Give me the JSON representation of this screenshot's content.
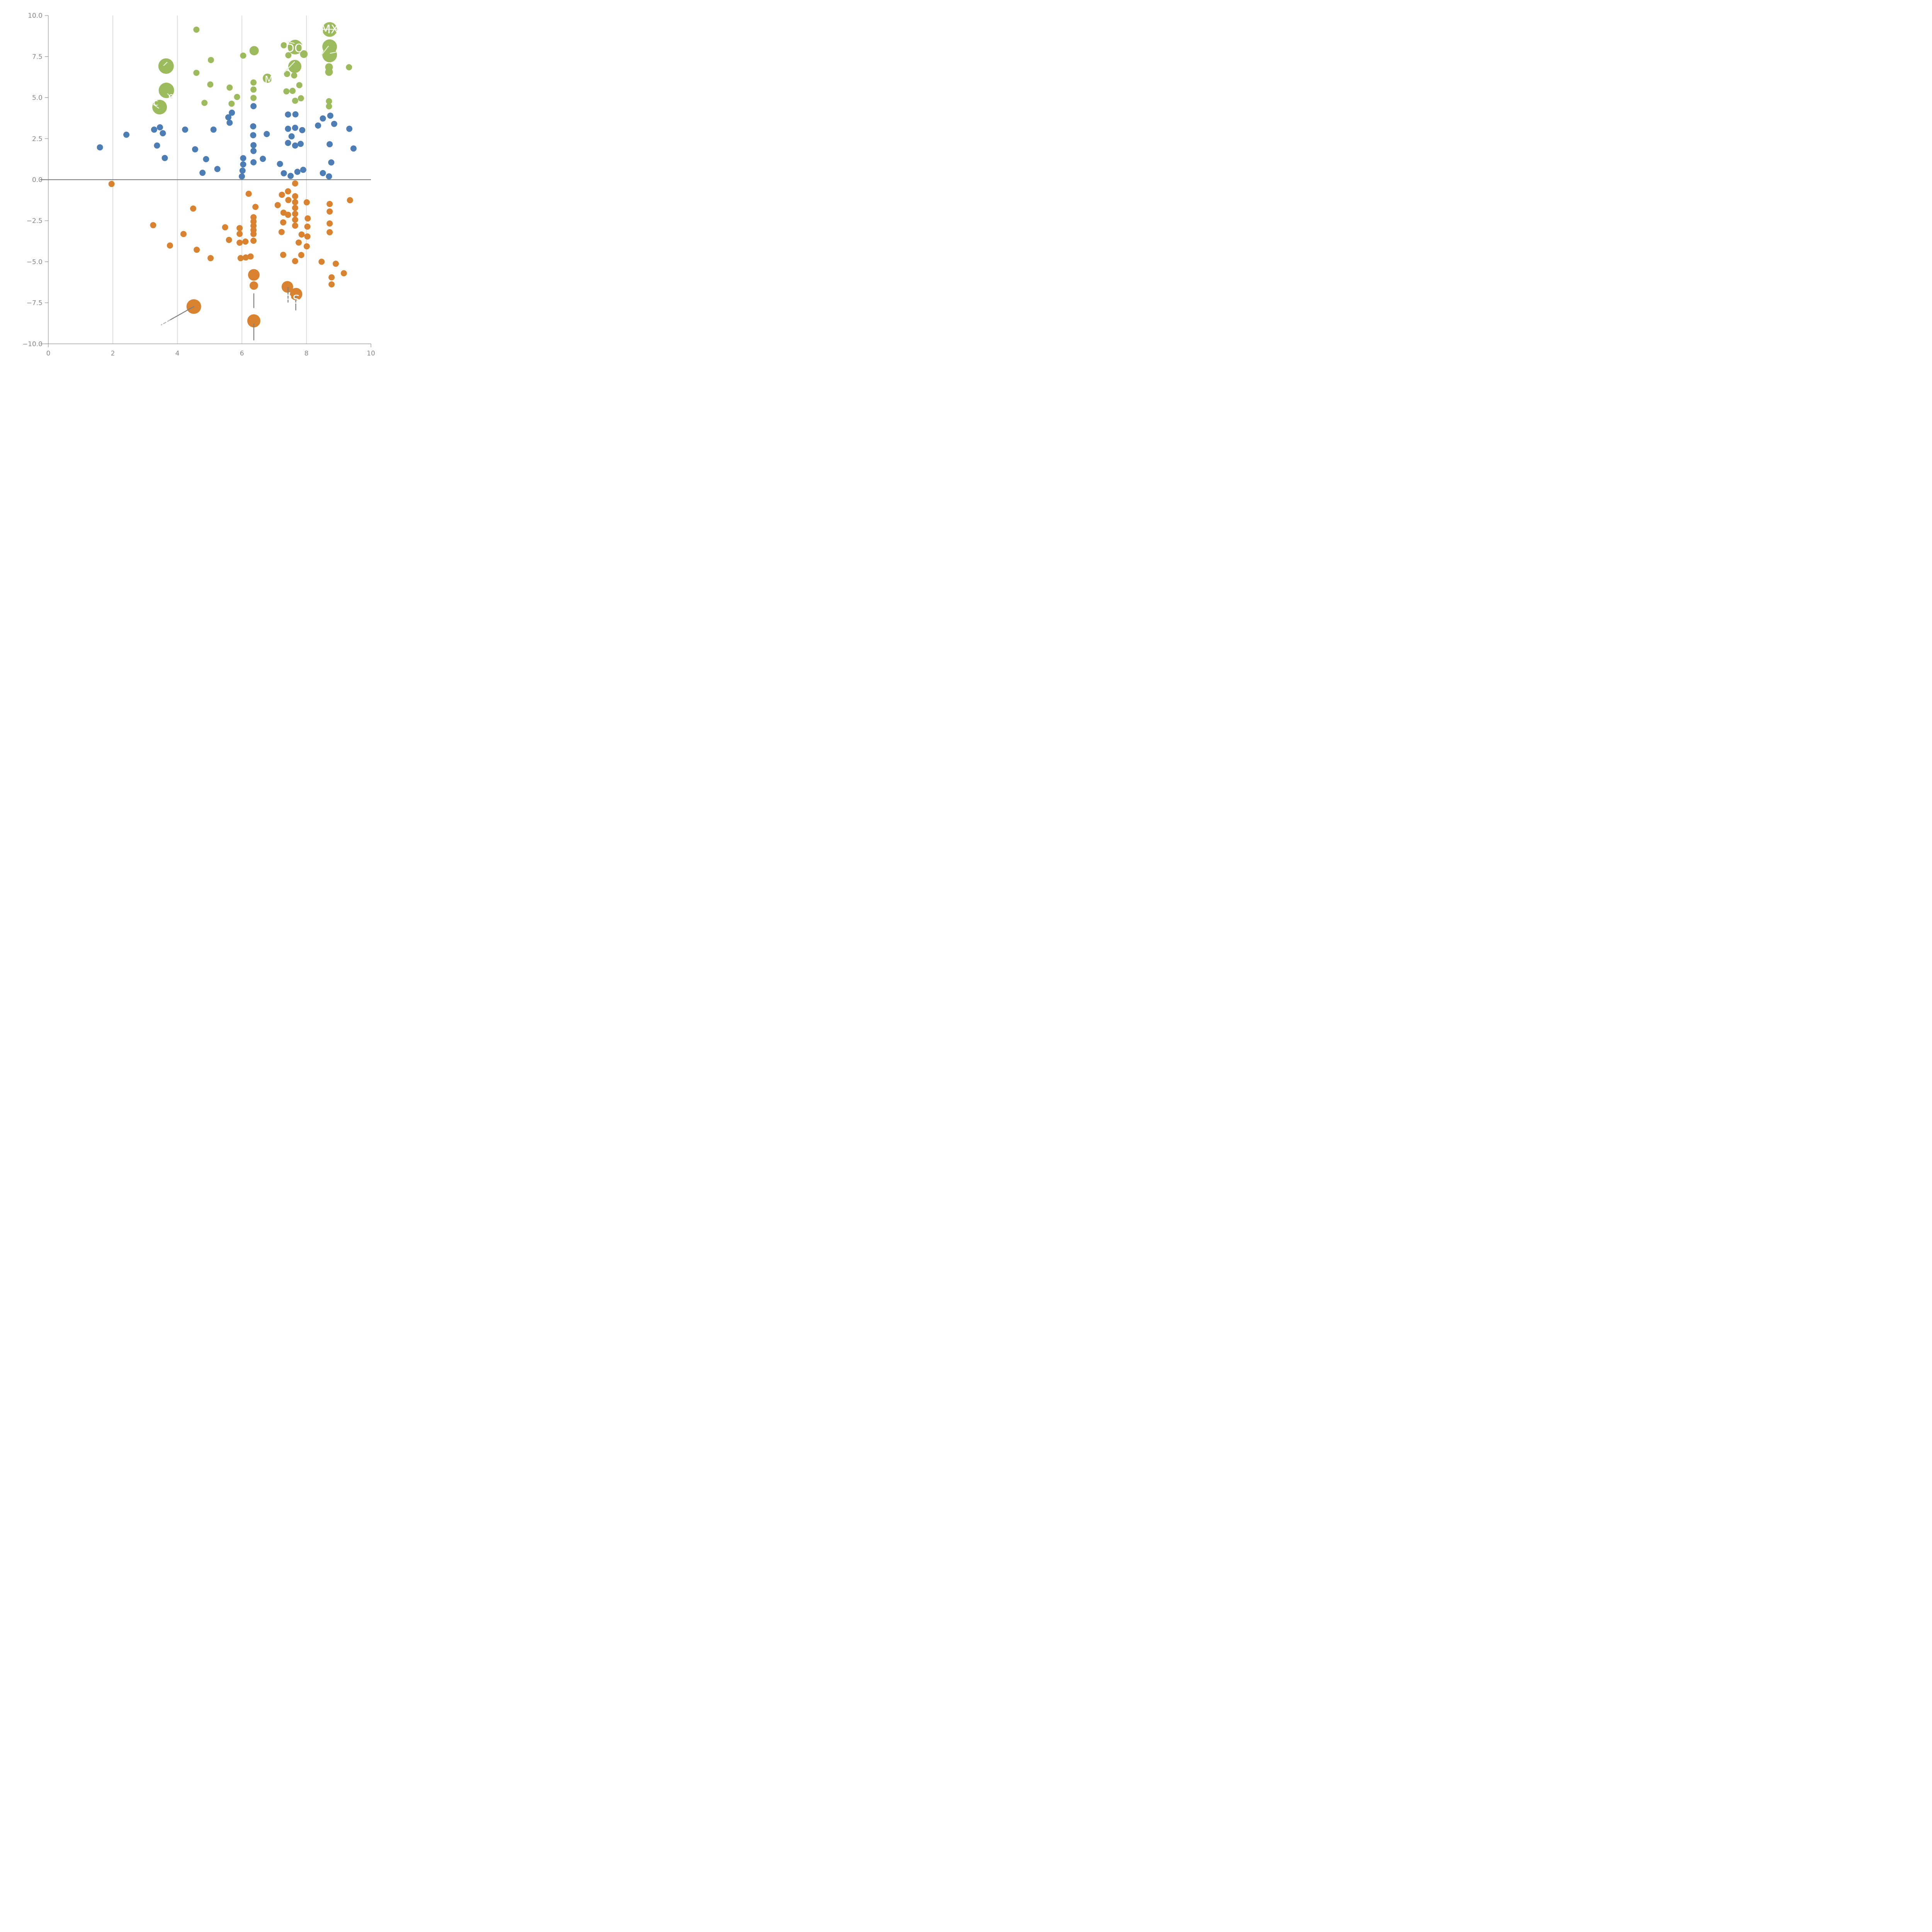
{
  "chart_data": {
    "type": "scatter",
    "title": "",
    "xlabel": "",
    "ylabel": "",
    "xlim": [
      0,
      10
    ],
    "ylim": [
      -10,
      10
    ],
    "x_tick_labels": [
      "0",
      "2",
      "4",
      "6",
      "8",
      "10"
    ],
    "x_tick_values": [
      0,
      2,
      4,
      6,
      8,
      10
    ],
    "y_tick_labels": [
      "10.0",
      "7.5",
      "5.0",
      "2.5",
      "0.0",
      "−2.5",
      "−5.0",
      "−7.5",
      "−10.0"
    ],
    "y_tick_values": [
      10,
      7.5,
      5,
      2.5,
      0,
      -2.5,
      -5,
      -7.5,
      -10
    ],
    "grid_x_values": [
      2,
      4,
      6,
      8
    ],
    "zero_line_y": 0,
    "legend": "none",
    "colors": {
      "green": "#9cbb5c",
      "blue": "#4d7db5",
      "orange": "#d9822f",
      "axis": "#888888",
      "zero_line": "#808080",
      "gridline": "#444444",
      "leader_light": "#e4efd4",
      "leader_gray": "#808080",
      "label_text": "#ffffff"
    },
    "default_point_radius": 8,
    "series": [
      {
        "name": "green",
        "color": "#9cbb5c",
        "points": [
          {
            "x": 8.72,
            "y": 9.15,
            "r": 19,
            "label": "MX"
          },
          {
            "x": 8.72,
            "y": 8.1,
            "r": 19
          },
          {
            "x": 8.72,
            "y": 7.6,
            "r": 19
          },
          {
            "x": 7.65,
            "y": 8.08,
            "r": 19,
            "label": "DO"
          },
          {
            "x": 7.64,
            "y": 6.9,
            "r": 17
          },
          {
            "x": 3.65,
            "y": 6.92,
            "r": 20
          },
          {
            "x": 3.66,
            "y": 5.44,
            "r": 20,
            "label": "o"
          },
          {
            "x": 3.45,
            "y": 4.42,
            "r": 19,
            "label": "c"
          },
          {
            "x": 6.79,
            "y": 6.18,
            "r": 12,
            "label": "M"
          },
          {
            "x": 6.38,
            "y": 7.86,
            "r": 12
          },
          {
            "x": 4.59,
            "y": 9.14
          },
          {
            "x": 4.59,
            "y": 6.51
          },
          {
            "x": 5.04,
            "y": 7.29
          },
          {
            "x": 5.02,
            "y": 5.8
          },
          {
            "x": 4.84,
            "y": 4.68
          },
          {
            "x": 5.62,
            "y": 5.61
          },
          {
            "x": 5.68,
            "y": 4.63
          },
          {
            "x": 5.85,
            "y": 5.04
          },
          {
            "x": 6.04,
            "y": 7.56
          },
          {
            "x": 6.36,
            "y": 5.92
          },
          {
            "x": 6.36,
            "y": 5.49
          },
          {
            "x": 6.36,
            "y": 4.98
          },
          {
            "x": 7.3,
            "y": 8.19
          },
          {
            "x": 7.44,
            "y": 7.58
          },
          {
            "x": 7.92,
            "y": 7.65,
            "r": 10
          },
          {
            "x": 7.4,
            "y": 6.44
          },
          {
            "x": 7.62,
            "y": 6.35
          },
          {
            "x": 7.38,
            "y": 5.38
          },
          {
            "x": 7.57,
            "y": 5.41
          },
          {
            "x": 7.78,
            "y": 5.76
          },
          {
            "x": 7.65,
            "y": 4.81
          },
          {
            "x": 7.83,
            "y": 4.96
          },
          {
            "x": 8.7,
            "y": 6.86,
            "r": 10
          },
          {
            "x": 8.7,
            "y": 6.56,
            "r": 10
          },
          {
            "x": 9.32,
            "y": 6.85
          },
          {
            "x": 8.7,
            "y": 4.78
          },
          {
            "x": 8.7,
            "y": 4.47
          }
        ]
      },
      {
        "name": "blue",
        "color": "#4d7db5",
        "points": [
          {
            "x": 1.6,
            "y": 1.97
          },
          {
            "x": 2.42,
            "y": 2.74
          },
          {
            "x": 3.28,
            "y": 3.05
          },
          {
            "x": 3.46,
            "y": 3.19
          },
          {
            "x": 3.55,
            "y": 2.83
          },
          {
            "x": 3.37,
            "y": 2.08
          },
          {
            "x": 3.61,
            "y": 1.32
          },
          {
            "x": 4.24,
            "y": 3.05
          },
          {
            "x": 4.55,
            "y": 1.85
          },
          {
            "x": 4.89,
            "y": 1.25
          },
          {
            "x": 4.78,
            "y": 0.42
          },
          {
            "x": 5.24,
            "y": 0.65
          },
          {
            "x": 5.12,
            "y": 3.05
          },
          {
            "x": 5.69,
            "y": 4.08
          },
          {
            "x": 5.58,
            "y": 3.8
          },
          {
            "x": 5.62,
            "y": 3.47
          },
          {
            "x": 6.36,
            "y": 4.48
          },
          {
            "x": 6.35,
            "y": 3.25
          },
          {
            "x": 6.35,
            "y": 2.71
          },
          {
            "x": 6.77,
            "y": 2.78
          },
          {
            "x": 6.36,
            "y": 2.1
          },
          {
            "x": 6.36,
            "y": 1.75
          },
          {
            "x": 6.36,
            "y": 1.06
          },
          {
            "x": 6.65,
            "y": 1.27
          },
          {
            "x": 6.04,
            "y": 1.31
          },
          {
            "x": 6.04,
            "y": 0.93
          },
          {
            "x": 6.02,
            "y": 0.55
          },
          {
            "x": 6.0,
            "y": 0.2
          },
          {
            "x": 7.18,
            "y": 0.96
          },
          {
            "x": 7.3,
            "y": 0.39
          },
          {
            "x": 7.51,
            "y": 0.23
          },
          {
            "x": 7.72,
            "y": 0.48
          },
          {
            "x": 7.9,
            "y": 0.6
          },
          {
            "x": 7.43,
            "y": 3.97
          },
          {
            "x": 7.66,
            "y": 3.98
          },
          {
            "x": 7.43,
            "y": 3.1
          },
          {
            "x": 7.65,
            "y": 3.16
          },
          {
            "x": 7.87,
            "y": 3.02
          },
          {
            "x": 7.54,
            "y": 2.64
          },
          {
            "x": 7.43,
            "y": 2.24
          },
          {
            "x": 7.65,
            "y": 2.08
          },
          {
            "x": 7.82,
            "y": 2.18
          },
          {
            "x": 8.36,
            "y": 3.3
          },
          {
            "x": 8.51,
            "y": 3.73
          },
          {
            "x": 8.74,
            "y": 3.9
          },
          {
            "x": 8.86,
            "y": 3.4
          },
          {
            "x": 8.72,
            "y": 2.16
          },
          {
            "x": 8.77,
            "y": 1.05
          },
          {
            "x": 9.33,
            "y": 3.1
          },
          {
            "x": 9.46,
            "y": 1.9
          },
          {
            "x": 8.51,
            "y": 0.4
          },
          {
            "x": 8.7,
            "y": 0.2
          }
        ]
      },
      {
        "name": "orange",
        "color": "#d9822f",
        "points": [
          {
            "x": 1.96,
            "y": -0.26
          },
          {
            "x": 3.25,
            "y": -2.77
          },
          {
            "x": 3.77,
            "y": -4.01
          },
          {
            "x": 4.19,
            "y": -3.31
          },
          {
            "x": 4.49,
            "y": -1.76
          },
          {
            "x": 4.6,
            "y": -4.27
          },
          {
            "x": 5.03,
            "y": -4.78
          },
          {
            "x": 5.48,
            "y": -2.9
          },
          {
            "x": 5.6,
            "y": -3.67
          },
          {
            "x": 5.93,
            "y": -2.95
          },
          {
            "x": 5.93,
            "y": -3.3
          },
          {
            "x": 5.93,
            "y": -3.84
          },
          {
            "x": 6.11,
            "y": -3.77
          },
          {
            "x": 5.96,
            "y": -4.78
          },
          {
            "x": 6.12,
            "y": -4.74
          },
          {
            "x": 6.27,
            "y": -4.68
          },
          {
            "x": 6.21,
            "y": -0.86
          },
          {
            "x": 6.42,
            "y": -1.66
          },
          {
            "x": 6.36,
            "y": -2.29
          },
          {
            "x": 6.36,
            "y": -2.55
          },
          {
            "x": 6.36,
            "y": -2.81
          },
          {
            "x": 6.36,
            "y": -3.07
          },
          {
            "x": 6.36,
            "y": -3.31
          },
          {
            "x": 6.36,
            "y": -3.72
          },
          {
            "x": 6.37,
            "y": -5.8,
            "r": 15
          },
          {
            "x": 6.37,
            "y": -6.45,
            "r": 11
          },
          {
            "x": 6.37,
            "y": -8.6,
            "r": 17
          },
          {
            "x": 4.51,
            "y": -7.73,
            "r": 19
          },
          {
            "x": 7.41,
            "y": -6.53,
            "r": 15
          },
          {
            "x": 7.68,
            "y": -6.97,
            "r": 16,
            "label": "RS"
          },
          {
            "x": 7.65,
            "y": -0.23
          },
          {
            "x": 7.43,
            "y": -0.71
          },
          {
            "x": 7.24,
            "y": -0.92
          },
          {
            "x": 7.11,
            "y": -1.55
          },
          {
            "x": 7.44,
            "y": -1.24
          },
          {
            "x": 7.65,
            "y": -1.01
          },
          {
            "x": 7.65,
            "y": -1.37
          },
          {
            "x": 7.65,
            "y": -1.72
          },
          {
            "x": 7.65,
            "y": -2.08
          },
          {
            "x": 7.29,
            "y": -2.01
          },
          {
            "x": 7.43,
            "y": -2.14
          },
          {
            "x": 7.65,
            "y": -2.44
          },
          {
            "x": 7.28,
            "y": -2.6
          },
          {
            "x": 7.65,
            "y": -2.8
          },
          {
            "x": 7.23,
            "y": -3.19
          },
          {
            "x": 7.85,
            "y": -3.34
          },
          {
            "x": 8.03,
            "y": -3.46
          },
          {
            "x": 7.76,
            "y": -3.83
          },
          {
            "x": 8.01,
            "y": -4.06
          },
          {
            "x": 7.84,
            "y": -4.59
          },
          {
            "x": 7.28,
            "y": -4.58
          },
          {
            "x": 7.65,
            "y": -4.96
          },
          {
            "x": 8.01,
            "y": -1.38
          },
          {
            "x": 8.04,
            "y": -2.36
          },
          {
            "x": 8.03,
            "y": -2.86
          },
          {
            "x": 8.72,
            "y": -1.48
          },
          {
            "x": 8.72,
            "y": -1.94
          },
          {
            "x": 8.72,
            "y": -2.67
          },
          {
            "x": 8.72,
            "y": -3.2
          },
          {
            "x": 9.35,
            "y": -1.25
          },
          {
            "x": 8.47,
            "y": -5.0
          },
          {
            "x": 8.91,
            "y": -5.12
          },
          {
            "x": 8.78,
            "y": -5.95
          },
          {
            "x": 8.78,
            "y": -6.38
          },
          {
            "x": 9.16,
            "y": -5.7
          }
        ]
      }
    ],
    "annotations": [
      {
        "text": "MX",
        "x": 8.72,
        "y": 9.18,
        "size": 30
      },
      {
        "text": "DO",
        "x": 7.63,
        "y": 8.02,
        "size": 30
      },
      {
        "text": "RS",
        "x": 7.56,
        "y": -7.28,
        "size": 30
      },
      {
        "text": "M",
        "x": 6.84,
        "y": 6.1,
        "size": 26
      },
      {
        "text": "o",
        "x": 3.81,
        "y": 5.1,
        "size": 24
      },
      {
        "text": "c",
        "x": 3.33,
        "y": 4.72,
        "size": 24
      }
    ],
    "leader_lines": [
      {
        "x1": 8.47,
        "y1": 9.16,
        "x2": 8.97,
        "y2": 9.16,
        "style": "light"
      },
      {
        "x1": 8.68,
        "y1": 8.13,
        "x2": 8.47,
        "y2": 7.6,
        "style": "light"
      },
      {
        "x1": 8.74,
        "y1": 7.7,
        "x2": 8.94,
        "y2": 7.78,
        "style": "light"
      },
      {
        "x1": 7.43,
        "y1": 8.41,
        "x2": 7.62,
        "y2": 8.31,
        "style": "light"
      },
      {
        "x1": 7.31,
        "y1": 6.53,
        "x2": 7.63,
        "y2": 7.18,
        "style": "light"
      },
      {
        "x1": 3.68,
        "y1": 7.15,
        "x2": 3.58,
        "y2": 6.96,
        "style": "light"
      },
      {
        "x1": 3.7,
        "y1": 5.23,
        "x2": 3.84,
        "y2": 4.94,
        "style": "light"
      },
      {
        "x1": 3.26,
        "y1": 4.58,
        "x2": 3.42,
        "y2": 4.36,
        "style": "light"
      },
      {
        "x1": 4.51,
        "y1": -7.73,
        "x2": 3.77,
        "y2": -8.55,
        "style": "gray"
      },
      {
        "x1": 3.77,
        "y1": -8.55,
        "x2": 3.5,
        "y2": -8.85,
        "style": "gray-dashed"
      },
      {
        "x1": 7.43,
        "y1": -6.56,
        "x2": 7.43,
        "y2": -7.46,
        "style": "gray"
      },
      {
        "x1": 7.67,
        "y1": -7.04,
        "x2": 7.67,
        "y2": -7.94,
        "style": "gray"
      },
      {
        "x1": 6.37,
        "y1": -6.95,
        "x2": 6.37,
        "y2": -7.8,
        "style": "gray"
      },
      {
        "x1": 6.37,
        "y1": -8.8,
        "x2": 6.37,
        "y2": -9.77,
        "style": "gray"
      }
    ]
  }
}
